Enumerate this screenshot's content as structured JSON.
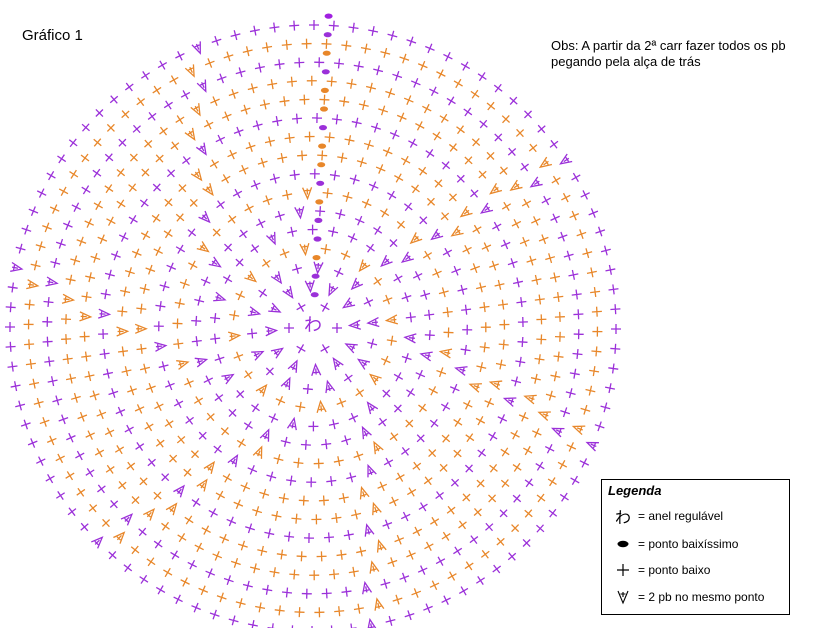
{
  "title": "Gráfico 1",
  "note": "Obs: A partir da 2ª carr fazer todos os pb pegando pela alça de trás",
  "center_symbol": "わ",
  "colors": {
    "purple": "#9b30d9",
    "orange": "#e8872a",
    "slip": "#a020e0"
  },
  "rounds": [
    {
      "round": 1,
      "color": "purple",
      "pattern": "all_plus",
      "stitches": 6
    },
    {
      "round": 2,
      "color": "purple",
      "pattern": "all_inc",
      "stitches": 12
    },
    {
      "round": 3,
      "color": "purple",
      "pattern": "inc_every_2",
      "stitches": 18
    },
    {
      "round": 4,
      "color": "orange",
      "pattern": "inc_every_3",
      "stitches": 24
    },
    {
      "round": 5,
      "color": "purple",
      "pattern": "inc_every_4",
      "stitches": 30
    },
    {
      "round": 6,
      "color": "purple",
      "pattern": "inc_every_5",
      "stitches": 36
    },
    {
      "round": 7,
      "color": "orange",
      "pattern": "inc_every_6",
      "stitches": 42
    },
    {
      "round": 8,
      "color": "purple",
      "pattern": "inc_every_7",
      "stitches": 48
    },
    {
      "round": 9,
      "color": "orange",
      "pattern": "inc_every_8",
      "stitches": 54
    },
    {
      "round": 10,
      "color": "orange",
      "pattern": "inc_every_9",
      "stitches": 60
    },
    {
      "round": 11,
      "color": "purple",
      "pattern": "inc_every_10",
      "stitches": 66
    },
    {
      "round": 12,
      "color": "orange",
      "pattern": "inc_every_11",
      "stitches": 72
    },
    {
      "round": 13,
      "color": "orange",
      "pattern": "inc_every_12",
      "stitches": 78
    },
    {
      "round": 14,
      "color": "purple",
      "pattern": "inc_every_13",
      "stitches": 84
    },
    {
      "round": 15,
      "color": "orange",
      "pattern": "inc_every_14",
      "stitches": 90
    },
    {
      "round": 16,
      "color": "purple",
      "pattern": "inc_every_15",
      "stitches": 96
    }
  ],
  "legend": {
    "title": "Legenda",
    "items": [
      {
        "symbol": "ring",
        "label": "= anel regulável"
      },
      {
        "symbol": "slip",
        "label": "= ponto baixíssimo"
      },
      {
        "symbol": "plus",
        "label": "= ponto baixo"
      },
      {
        "symbol": "inc",
        "label": "= 2 pb no mesmo ponto"
      }
    ]
  }
}
